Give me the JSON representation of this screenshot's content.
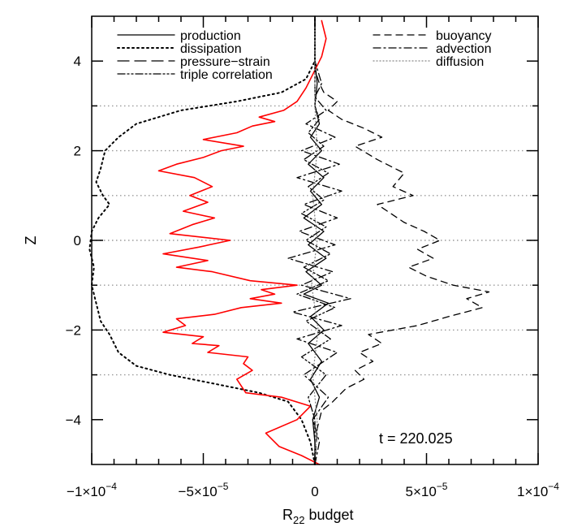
{
  "chart_data": {
    "type": "line",
    "xlabel_main": "R",
    "xlabel_sub": "22",
    "xlabel_rest": " budget",
    "ylabel": "Z",
    "xlim": [
      -0.0001,
      0.0001
    ],
    "ylim": [
      -5,
      5
    ],
    "x_ticks": [
      {
        "value": -0.0001,
        "mant": "−1×10",
        "exp": "−4"
      },
      {
        "value": -5e-05,
        "mant": "−5×10",
        "exp": "−5"
      },
      {
        "value": 0,
        "mant": "0",
        "exp": ""
      },
      {
        "value": 5e-05,
        "mant": "5×10",
        "exp": "−5"
      },
      {
        "value": 0.0001,
        "mant": "1×10",
        "exp": "−4"
      }
    ],
    "y_ticks": [
      {
        "value": -4,
        "label": "−4"
      },
      {
        "value": -2,
        "label": "−2"
      },
      {
        "value": 0,
        "label": "0"
      },
      {
        "value": 2,
        "label": "2"
      },
      {
        "value": 4,
        "label": "4"
      }
    ],
    "reference_lines_z": [
      3,
      2,
      1,
      0,
      -1,
      -2,
      -3
    ],
    "annotation": "t  =  220.025",
    "legend": [
      {
        "label": "production",
        "style": "solid",
        "column": "left"
      },
      {
        "label": "dissipation",
        "style": "dotted",
        "column": "left"
      },
      {
        "label": "pressure−strain",
        "style": "longdash",
        "column": "left"
      },
      {
        "label": "triple correlation",
        "style": "dashdotdot",
        "column": "left"
      },
      {
        "label": "buoyancy",
        "style": "dashed",
        "column": "right"
      },
      {
        "label": "advection",
        "style": "dashdot",
        "column": "right"
      },
      {
        "label": "diffusion",
        "style": "fine-dotted",
        "column": "right"
      }
    ],
    "series": [
      {
        "name": "dissipation",
        "color": "#000000",
        "style": "dotted",
        "points": [
          [
            0,
            -5
          ],
          [
            -2e-06,
            -4.5
          ],
          [
            -6e-06,
            -4
          ],
          [
            -1.2e-05,
            -3.6
          ],
          [
            -2.5e-05,
            -3.4
          ],
          [
            -4.5e-05,
            -3.2
          ],
          [
            -6.5e-05,
            -3.0
          ],
          [
            -8e-05,
            -2.8
          ],
          [
            -8.8e-05,
            -2.5
          ],
          [
            -9.2e-05,
            -2.1
          ],
          [
            -9.6e-05,
            -1.8
          ],
          [
            -9.8e-05,
            -1.4
          ],
          [
            -0.0001,
            -1.0
          ],
          [
            -9.9e-05,
            -0.6
          ],
          [
            -0.000101,
            -0.2
          ],
          [
            -0.0001,
            0.2
          ],
          [
            -9.7e-05,
            0.5
          ],
          [
            -9.2e-05,
            0.8
          ],
          [
            -9.5e-05,
            1.0
          ],
          [
            -9.8e-05,
            1.3
          ],
          [
            -9.6e-05,
            1.6
          ],
          [
            -9.4e-05,
            2.0
          ],
          [
            -8.8e-05,
            2.3
          ],
          [
            -8e-05,
            2.6
          ],
          [
            -6e-05,
            2.9
          ],
          [
            -3.5e-05,
            3.1
          ],
          [
            -1.5e-05,
            3.3
          ],
          [
            -4e-06,
            3.6
          ],
          [
            0,
            4
          ],
          [
            0,
            5
          ]
        ]
      },
      {
        "name": "production",
        "color": "#000000",
        "style": "solid",
        "points": [
          [
            0,
            -5
          ],
          [
            5e-09,
            -4.5
          ],
          [
            -1e-06,
            -4
          ],
          [
            2e-06,
            -3.5
          ],
          [
            -2e-06,
            -3.1
          ],
          [
            3e-06,
            -2.7
          ],
          [
            -3e-06,
            -2.3
          ],
          [
            4e-06,
            -2.0
          ],
          [
            -2e-06,
            -1.7
          ],
          [
            6e-06,
            -1.4
          ],
          [
            -5e-06,
            -1.2
          ],
          [
            3e-06,
            -1.0
          ],
          [
            -4e-06,
            -0.7
          ],
          [
            5e-06,
            -0.4
          ],
          [
            -3e-06,
            -0.1
          ],
          [
            4e-06,
            0.2
          ],
          [
            -5e-06,
            0.5
          ],
          [
            3e-06,
            0.8
          ],
          [
            -2e-06,
            1.1
          ],
          [
            4e-06,
            1.4
          ],
          [
            -3e-06,
            1.7
          ],
          [
            3e-06,
            2.0
          ],
          [
            -2e-06,
            2.3
          ],
          [
            2e-06,
            2.6
          ],
          [
            0,
            3.0
          ],
          [
            1e-06,
            3.5
          ],
          [
            0,
            4
          ],
          [
            0,
            5
          ]
        ]
      },
      {
        "name": "pressure−strain",
        "color": "#ff0000",
        "style": "solid",
        "points": [
          [
            2e-06,
            -5
          ],
          [
            -6e-06,
            -4.8
          ],
          [
            -1.6e-05,
            -4.6
          ],
          [
            -2.2e-05,
            -4.3
          ],
          [
            -8e-06,
            -4.0
          ],
          [
            -2e-06,
            -3.7
          ],
          [
            -1.5e-05,
            -3.5
          ],
          [
            -3.1e-05,
            -3.4
          ],
          [
            -3.5e-05,
            -3.1
          ],
          [
            -2.8e-05,
            -2.9
          ],
          [
            -3.2e-05,
            -2.75
          ],
          [
            -3e-05,
            -2.6
          ],
          [
            -4.8e-05,
            -2.5
          ],
          [
            -4.3e-05,
            -2.35
          ],
          [
            -5.5e-05,
            -2.3
          ],
          [
            -5e-05,
            -2.15
          ],
          [
            -6.8e-05,
            -2.05
          ],
          [
            -5.8e-05,
            -1.9
          ],
          [
            -6.2e-05,
            -1.75
          ],
          [
            -4.5e-05,
            -1.65
          ],
          [
            -3.3e-05,
            -1.5
          ],
          [
            -1.5e-05,
            -1.4
          ],
          [
            -2.9e-05,
            -1.3
          ],
          [
            -1.8e-05,
            -1.2
          ],
          [
            -2.4e-05,
            -1.1
          ],
          [
            -8e-06,
            -1.0
          ],
          [
            -2.9e-05,
            -0.9
          ],
          [
            -4.6e-05,
            -0.7
          ],
          [
            -6.2e-05,
            -0.6
          ],
          [
            -4.8e-05,
            -0.45
          ],
          [
            -6.8e-05,
            -0.3
          ],
          [
            -5.2e-05,
            -0.15
          ],
          [
            -3.8e-05,
            0
          ],
          [
            -6.5e-05,
            0.15
          ],
          [
            -5.5e-05,
            0.35
          ],
          [
            -4.5e-05,
            0.5
          ],
          [
            -5.9e-05,
            0.65
          ],
          [
            -4.8e-05,
            0.85
          ],
          [
            -5.6e-05,
            1.0
          ],
          [
            -4.6e-05,
            1.2
          ],
          [
            -5.4e-05,
            1.4
          ],
          [
            -7e-05,
            1.55
          ],
          [
            -6.2e-05,
            1.7
          ],
          [
            -5e-05,
            1.85
          ],
          [
            -4.2e-05,
            2.0
          ],
          [
            -3.2e-05,
            2.1
          ],
          [
            -5e-05,
            2.25
          ],
          [
            -3.5e-05,
            2.4
          ],
          [
            -2.8e-05,
            2.55
          ],
          [
            -1.8e-05,
            2.65
          ],
          [
            -2.5e-05,
            2.75
          ],
          [
            -1.4e-05,
            2.9
          ],
          [
            -8e-06,
            3.1
          ],
          [
            -4e-06,
            3.4
          ],
          [
            -1e-06,
            3.7
          ],
          [
            3e-06,
            4.1
          ],
          [
            5e-06,
            4.5
          ],
          [
            3e-06,
            4.9
          ]
        ]
      },
      {
        "name": "buoyancy",
        "color": "#000000",
        "style": "dashed",
        "points": [
          [
            0,
            -5
          ],
          [
            1e-06,
            -4.2
          ],
          [
            3e-06,
            -3.8
          ],
          [
            8e-06,
            -3.6
          ],
          [
            1.4e-05,
            -3.3
          ],
          [
            2.2e-05,
            -3.1
          ],
          [
            1.8e-05,
            -2.9
          ],
          [
            2.6e-05,
            -2.7
          ],
          [
            2e-05,
            -2.5
          ],
          [
            3e-05,
            -2.3
          ],
          [
            2.4e-05,
            -2.1
          ],
          [
            4.6e-05,
            -1.9
          ],
          [
            6e-05,
            -1.7
          ],
          [
            7.5e-05,
            -1.5
          ],
          [
            6.8e-05,
            -1.3
          ],
          [
            7.8e-05,
            -1.15
          ],
          [
            6.2e-05,
            -1.0
          ],
          [
            5e-05,
            -0.8
          ],
          [
            4.2e-05,
            -0.6
          ],
          [
            5.3e-05,
            -0.4
          ],
          [
            4.6e-05,
            -0.2
          ],
          [
            5.6e-05,
            0
          ],
          [
            4.9e-05,
            0.2
          ],
          [
            4e-05,
            0.4
          ],
          [
            3.4e-05,
            0.6
          ],
          [
            2.8e-05,
            0.8
          ],
          [
            4.4e-05,
            1.0
          ],
          [
            3.5e-05,
            1.2
          ],
          [
            4e-05,
            1.5
          ],
          [
            2.8e-05,
            1.8
          ],
          [
            1.8e-05,
            2.1
          ],
          [
            3e-05,
            2.3
          ],
          [
            2.2e-05,
            2.5
          ],
          [
            1.2e-05,
            2.7
          ],
          [
            6e-06,
            2.9
          ],
          [
            1e-05,
            3.1
          ],
          [
            4e-06,
            3.3
          ],
          [
            2e-06,
            3.5
          ],
          [
            0,
            3.8
          ],
          [
            0,
            5
          ]
        ]
      },
      {
        "name": "advection",
        "color": "#000000",
        "style": "dashdot",
        "points": [
          [
            0,
            -5
          ],
          [
            2e-06,
            -4.5
          ],
          [
            -1e-06,
            -4
          ],
          [
            6e-06,
            -3.5
          ],
          [
            -5e-06,
            -3.0
          ],
          [
            1e-05,
            -2.5
          ],
          [
            -8e-06,
            -2.2
          ],
          [
            1.2e-05,
            -1.9
          ],
          [
            -1e-05,
            -1.6
          ],
          [
            1.6e-05,
            -1.3
          ],
          [
            -6e-06,
            -1.0
          ],
          [
            8e-06,
            -0.7
          ],
          [
            -1.2e-05,
            -0.4
          ],
          [
            9e-06,
            -0.1
          ],
          [
            -7e-06,
            0.2
          ],
          [
            1e-05,
            0.5
          ],
          [
            -5e-06,
            0.8
          ],
          [
            1.2e-05,
            1.1
          ],
          [
            -8e-06,
            1.4
          ],
          [
            1.1e-05,
            1.7
          ],
          [
            -6e-06,
            2.0
          ],
          [
            9e-06,
            2.3
          ],
          [
            -4e-06,
            2.6
          ],
          [
            5e-06,
            2.9
          ],
          [
            0,
            3.2
          ],
          [
            3e-06,
            3.5
          ],
          [
            0,
            4
          ],
          [
            0,
            5
          ]
        ]
      },
      {
        "name": "triple correlation",
        "color": "#000000",
        "style": "dashdotdot",
        "points": [
          [
            0,
            -5
          ],
          [
            0,
            -4
          ],
          [
            -3e-06,
            -3.5
          ],
          [
            5e-06,
            -3.0
          ],
          [
            -6e-06,
            -2.6
          ],
          [
            7e-06,
            -2.2
          ],
          [
            -4e-06,
            -1.8
          ],
          [
            9e-06,
            -1.5
          ],
          [
            -8e-06,
            -1.2
          ],
          [
            6e-06,
            -0.9
          ],
          [
            -5e-06,
            -0.6
          ],
          [
            7e-06,
            -0.3
          ],
          [
            -4e-06,
            0
          ],
          [
            5e-06,
            0.3
          ],
          [
            -6e-06,
            0.6
          ],
          [
            4e-06,
            0.9
          ],
          [
            -3e-06,
            1.2
          ],
          [
            6e-06,
            1.5
          ],
          [
            -5e-06,
            1.8
          ],
          [
            4e-06,
            2.1
          ],
          [
            -3e-06,
            2.4
          ],
          [
            2e-06,
            2.7
          ],
          [
            0,
            3.0
          ],
          [
            0,
            5
          ]
        ]
      },
      {
        "name": "diffusion",
        "color": "#888888",
        "style": "fine-dotted",
        "points": [
          [
            0,
            -5
          ],
          [
            1e-06,
            -4
          ],
          [
            -1e-06,
            -3
          ],
          [
            1.5e-06,
            -2
          ],
          [
            -1.5e-06,
            -1
          ],
          [
            1e-06,
            0
          ],
          [
            -1e-06,
            1
          ],
          [
            1e-06,
            2
          ],
          [
            0,
            3
          ],
          [
            0,
            5
          ]
        ]
      }
    ]
  }
}
